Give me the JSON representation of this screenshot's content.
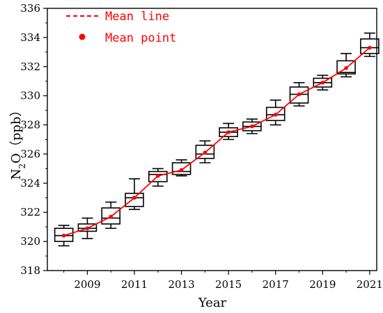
{
  "chart_data": {
    "type": "box",
    "xlabel": "Year",
    "ylabel": "N2O（ppb）",
    "ylabel_parts": {
      "prefix": "N",
      "subscript": "2",
      "suffix": "O（ppb）"
    },
    "xlim": [
      2007.3,
      2021.3
    ],
    "ylim": [
      318,
      336
    ],
    "x_ticks": [
      2009,
      2011,
      2013,
      2015,
      2017,
      2019,
      2021
    ],
    "y_ticks": [
      318,
      320,
      322,
      324,
      326,
      328,
      330,
      332,
      334,
      336
    ],
    "legend": {
      "position": "top-left",
      "items": [
        {
          "label": "Mean line",
          "marker": "dashed-line"
        },
        {
          "label": "Mean point",
          "marker": "dot"
        }
      ]
    },
    "colors": {
      "mean": "#ff0000",
      "box": "#000000"
    },
    "boxes": [
      {
        "year": 2008,
        "whisker_low": 319.7,
        "q1": 320.0,
        "median": 320.4,
        "q3": 320.9,
        "whisker_high": 321.1,
        "mean": 320.4
      },
      {
        "year": 2009,
        "whisker_low": 320.2,
        "q1": 320.7,
        "median": 320.9,
        "q3": 321.2,
        "whisker_high": 321.6,
        "mean": 320.9
      },
      {
        "year": 2010,
        "whisker_low": 320.9,
        "q1": 321.2,
        "median": 321.6,
        "q3": 322.3,
        "whisker_high": 322.7,
        "mean": 321.7
      },
      {
        "year": 2011,
        "whisker_low": 322.2,
        "q1": 322.4,
        "median": 323.0,
        "q3": 323.3,
        "whisker_high": 324.3,
        "mean": 323.0
      },
      {
        "year": 2012,
        "whisker_low": 323.8,
        "q1": 324.1,
        "median": 324.6,
        "q3": 324.8,
        "whisker_high": 325.0,
        "mean": 324.5
      },
      {
        "year": 2013,
        "whisker_low": 324.5,
        "q1": 324.6,
        "median": 324.8,
        "q3": 325.4,
        "whisker_high": 325.6,
        "mean": 324.9
      },
      {
        "year": 2014,
        "whisker_low": 325.4,
        "q1": 325.7,
        "median": 326.0,
        "q3": 326.6,
        "whisker_high": 326.9,
        "mean": 326.1
      },
      {
        "year": 2015,
        "whisker_low": 327.0,
        "q1": 327.2,
        "median": 327.5,
        "q3": 327.8,
        "whisker_high": 328.1,
        "mean": 327.5
      },
      {
        "year": 2016,
        "whisker_low": 327.4,
        "q1": 327.6,
        "median": 327.9,
        "q3": 328.2,
        "whisker_high": 328.4,
        "mean": 327.9
      },
      {
        "year": 2017,
        "whisker_low": 328.0,
        "q1": 328.3,
        "median": 328.7,
        "q3": 329.2,
        "whisker_high": 329.7,
        "mean": 328.7
      },
      {
        "year": 2018,
        "whisker_low": 329.3,
        "q1": 329.5,
        "median": 330.1,
        "q3": 330.6,
        "whisker_high": 330.9,
        "mean": 330.1
      },
      {
        "year": 2019,
        "whisker_low": 330.4,
        "q1": 330.6,
        "median": 330.9,
        "q3": 331.2,
        "whisker_high": 331.4,
        "mean": 330.9
      },
      {
        "year": 2020,
        "whisker_low": 331.3,
        "q1": 331.5,
        "median": 331.6,
        "q3": 332.4,
        "whisker_high": 332.9,
        "mean": 331.9
      },
      {
        "year": 2021,
        "whisker_low": 332.7,
        "q1": 332.9,
        "median": 333.3,
        "q3": 333.9,
        "whisker_high": 334.3,
        "mean": 333.3
      }
    ]
  }
}
